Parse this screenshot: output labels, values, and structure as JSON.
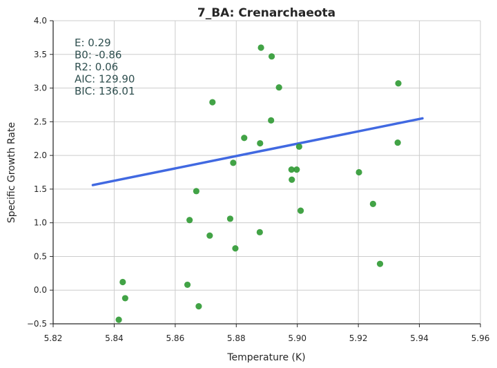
{
  "chart_data": {
    "type": "scatter",
    "title": "7_BA: Crenarchaeota",
    "xlabel": "Temperature (K)",
    "ylabel": "Specific Growth Rate",
    "xlim": [
      5.82,
      5.96
    ],
    "ylim": [
      -0.5,
      4.0
    ],
    "xticks": [
      5.82,
      5.84,
      5.86,
      5.88,
      5.9,
      5.92,
      5.94,
      5.96
    ],
    "xtick_labels": [
      "5.82",
      "5.84",
      "5.86",
      "5.88",
      "5.90",
      "5.92",
      "5.94",
      "5.96"
    ],
    "yticks": [
      -0.5,
      0.0,
      0.5,
      1.0,
      1.5,
      2.0,
      2.5,
      3.0,
      3.5,
      4.0
    ],
    "ytick_labels": [
      "−0.5",
      "0.0",
      "0.5",
      "1.0",
      "1.5",
      "2.0",
      "2.5",
      "3.0",
      "3.5",
      "4.0"
    ],
    "grid": true,
    "point_color": "#2e9932",
    "line_color": "#4169e1",
    "points": [
      {
        "x": 5.8415,
        "y": -0.44
      },
      {
        "x": 5.8428,
        "y": 0.12
      },
      {
        "x": 5.8436,
        "y": -0.12
      },
      {
        "x": 5.864,
        "y": 0.08
      },
      {
        "x": 5.8647,
        "y": 1.04
      },
      {
        "x": 5.8669,
        "y": 1.47
      },
      {
        "x": 5.8677,
        "y": -0.24
      },
      {
        "x": 5.8713,
        "y": 0.81
      },
      {
        "x": 5.8722,
        "y": 2.79
      },
      {
        "x": 5.878,
        "y": 1.06
      },
      {
        "x": 5.879,
        "y": 1.89
      },
      {
        "x": 5.8797,
        "y": 0.62
      },
      {
        "x": 5.8826,
        "y": 2.26
      },
      {
        "x": 5.8877,
        "y": 0.86
      },
      {
        "x": 5.8878,
        "y": 2.18
      },
      {
        "x": 5.8881,
        "y": 3.6
      },
      {
        "x": 5.8914,
        "y": 2.52
      },
      {
        "x": 5.8916,
        "y": 3.47
      },
      {
        "x": 5.894,
        "y": 3.01
      },
      {
        "x": 5.8981,
        "y": 1.79
      },
      {
        "x": 5.8982,
        "y": 1.64
      },
      {
        "x": 5.8998,
        "y": 1.79
      },
      {
        "x": 5.9006,
        "y": 2.13
      },
      {
        "x": 5.9011,
        "y": 1.18
      },
      {
        "x": 5.9202,
        "y": 1.75
      },
      {
        "x": 5.9248,
        "y": 1.28
      },
      {
        "x": 5.9271,
        "y": 0.39
      },
      {
        "x": 5.9329,
        "y": 2.19
      },
      {
        "x": 5.9331,
        "y": 3.07
      }
    ],
    "fit_line": {
      "x": [
        5.833,
        5.941
      ],
      "y": [
        1.56,
        2.55
      ]
    },
    "annotations": [
      "E:  0.29",
      "B0:  -0.86",
      "R2:  0.06",
      "AIC: 129.90",
      "BIC: 136.01"
    ]
  }
}
